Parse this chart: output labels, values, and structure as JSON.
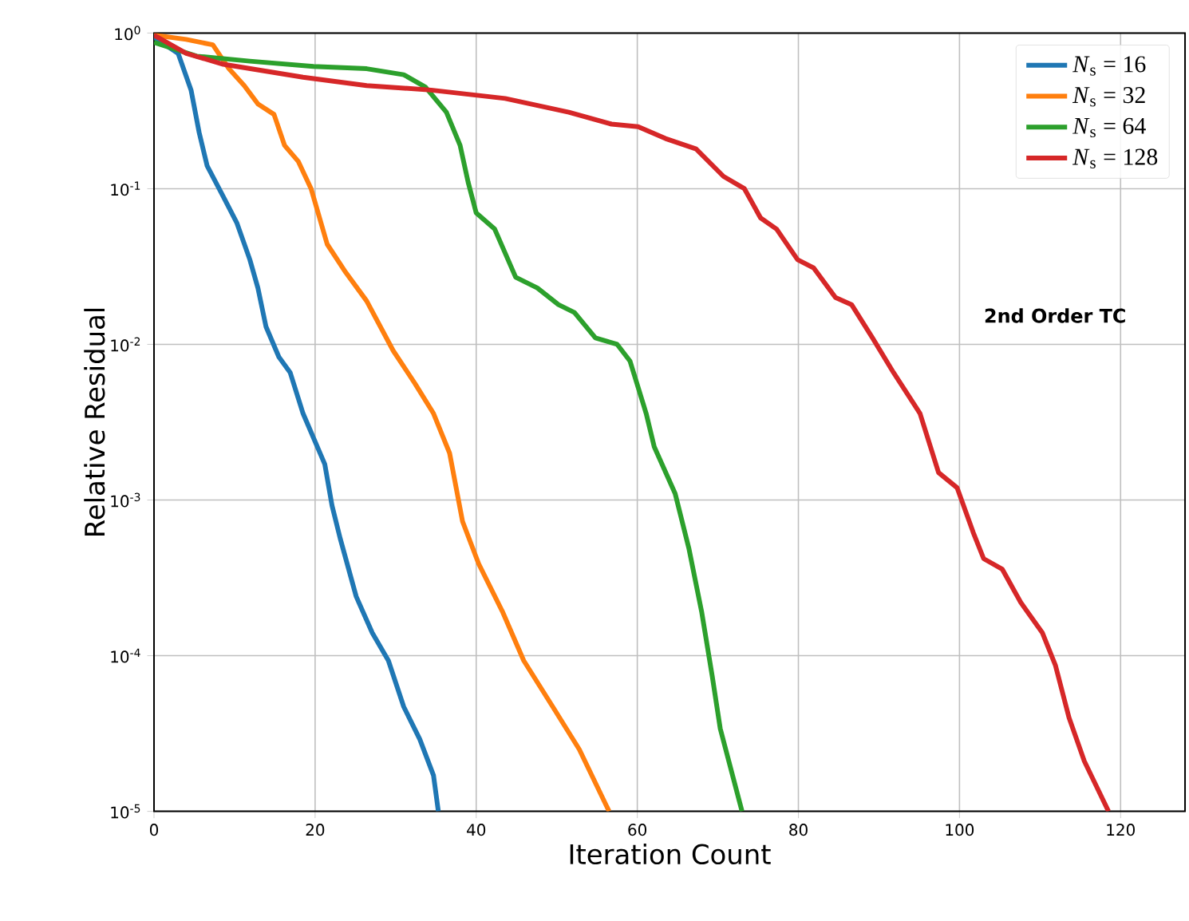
{
  "chart_data": {
    "type": "line",
    "xlabel": "Iteration Count",
    "ylabel": "Relative Residual",
    "annotations": [
      "**2nd Order TC**"
    ],
    "xlim": [
      0,
      128
    ],
    "xticks": [
      0,
      20,
      40,
      60,
      80,
      100,
      120
    ],
    "ylim": [
      1e-05,
      1
    ],
    "yticks": [
      {
        "value": 1,
        "label": "10$^{0}$"
      },
      {
        "value": 0.1,
        "label": "10$^{-1}$"
      },
      {
        "value": 0.01,
        "label": "10$^{-2}$"
      },
      {
        "value": 0.001,
        "label": "10$^{-3}$"
      },
      {
        "value": 0.0001,
        "label": "10$^{-4}$"
      },
      {
        "value": 1e-05,
        "label": "10$^{-5}$"
      }
    ],
    "log": "y",
    "grid": true,
    "legend": "top right",
    "line_style": "solid",
    "marker": "none",
    "series": [
      {
        "name": "*N*$_{s}$ = 16",
        "color": "#1f77b4",
        "x": [
          0,
          3.0,
          4.6,
          5.6,
          6.6,
          8.6,
          10.3,
          11.9,
          12.9,
          13.9,
          15.5,
          16.9,
          18.5,
          21.2,
          22.1,
          23.1,
          25.1,
          27.1,
          29.1,
          31.0,
          33.0,
          34.7,
          35.3
        ],
        "values": [
          0.94,
          0.74,
          0.43,
          0.23,
          0.14,
          0.089,
          0.06,
          0.035,
          0.023,
          0.013,
          0.0083,
          0.0066,
          0.0036,
          0.0017,
          0.00092,
          0.00057,
          0.00024,
          0.00014,
          9.3e-05,
          4.7e-05,
          2.9e-05,
          1.7e-05,
          1e-05
        ]
      },
      {
        "name": "*N*$_{s}$ = 32",
        "color": "#ff7f0e",
        "x": [
          0,
          4.0,
          7.3,
          9.3,
          11.2,
          12.9,
          14.9,
          16.2,
          17.9,
          19.5,
          21.5,
          23.8,
          26.4,
          29.7,
          32.4,
          34.7,
          36.7,
          38.3,
          40.3,
          43.3,
          45.9,
          49.5,
          52.8,
          56.5
        ],
        "values": [
          0.97,
          0.91,
          0.84,
          0.59,
          0.46,
          0.35,
          0.3,
          0.19,
          0.15,
          0.1,
          0.044,
          0.029,
          0.019,
          0.0091,
          0.0056,
          0.0036,
          0.002,
          0.00073,
          0.00039,
          0.00019,
          9.3e-05,
          4.7e-05,
          2.5e-05,
          1e-05
        ]
      },
      {
        "name": "*N*$_{s}$ = 64",
        "color": "#2ca02c",
        "x": [
          0,
          5.3,
          11.9,
          19.8,
          26.4,
          31.0,
          33.7,
          36.3,
          38.0,
          39.0,
          40.0,
          42.3,
          44.9,
          47.6,
          50.2,
          52.2,
          54.8,
          57.5,
          59.1,
          61.1,
          62.1,
          64.7,
          66.4,
          68.0,
          69.3,
          70.3,
          73.0
        ],
        "values": [
          0.87,
          0.71,
          0.66,
          0.61,
          0.59,
          0.54,
          0.45,
          0.31,
          0.19,
          0.11,
          0.07,
          0.055,
          0.027,
          0.023,
          0.018,
          0.016,
          0.011,
          0.01,
          0.0078,
          0.0036,
          0.0022,
          0.0011,
          0.00049,
          0.00019,
          7.4e-05,
          3.4e-05,
          1e-05
        ]
      },
      {
        "name": "*N*$_{s}$ = 128",
        "color": "#d62728",
        "x": [
          0,
          4.0,
          8.6,
          18.5,
          26.4,
          34.4,
          43.6,
          51.5,
          56.8,
          60.1,
          63.5,
          67.3,
          70.7,
          73.3,
          75.3,
          77.3,
          79.9,
          81.9,
          84.6,
          86.6,
          89.2,
          91.8,
          95.1,
          97.4,
          99.7,
          101.7,
          103.0,
          105.3,
          107.6,
          110.3,
          111.9,
          113.6,
          115.5,
          118.5
        ],
        "values": [
          0.97,
          0.74,
          0.63,
          0.52,
          0.46,
          0.43,
          0.38,
          0.31,
          0.26,
          0.25,
          0.21,
          0.18,
          0.12,
          0.1,
          0.065,
          0.055,
          0.035,
          0.031,
          0.02,
          0.018,
          0.011,
          0.0066,
          0.0036,
          0.0015,
          0.0012,
          0.00062,
          0.00042,
          0.00036,
          0.00022,
          0.00014,
          8.7e-05,
          4e-05,
          2.1e-05,
          1e-05
        ]
      }
    ]
  }
}
